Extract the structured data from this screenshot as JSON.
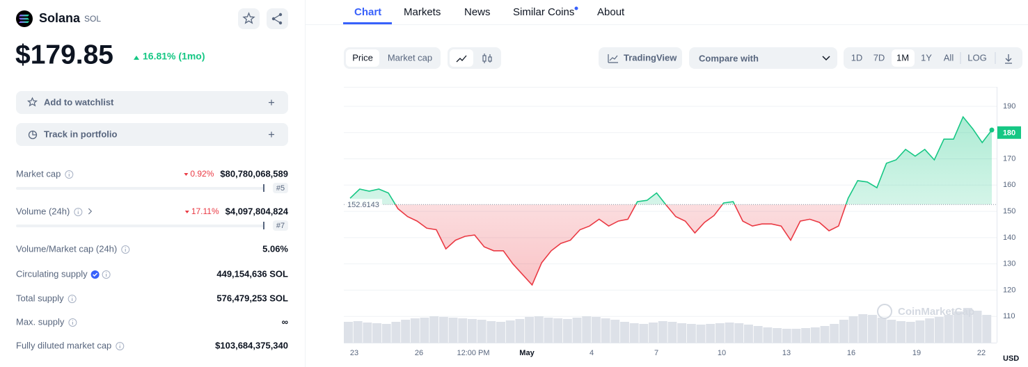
{
  "coin": {
    "name": "Solana",
    "symbol": "SOL",
    "price": "$179.85",
    "change": "16.81% (1mo)"
  },
  "actions": [
    "Add to watchlist",
    "Track in portfolio"
  ],
  "stats": [
    {
      "label": "Market cap",
      "change": "0.92%",
      "value": "$80,780,068,589",
      "rank": "#5"
    },
    {
      "label": "Volume (24h)",
      "change": "17.11%",
      "value": "$4,097,804,824",
      "rank": "#7"
    },
    {
      "label": "Volume/Market cap (24h)",
      "value": "5.06%"
    },
    {
      "label": "Circulating supply",
      "value": "449,154,636 SOL"
    },
    {
      "label": "Total supply",
      "value": "576,479,253 SOL"
    },
    {
      "label": "Max. supply",
      "value": "∞"
    },
    {
      "label": "Fully diluted market cap",
      "value": "$103,684,375,340"
    }
  ],
  "tabs": [
    "Chart",
    "Markets",
    "News",
    "Similar Coins",
    "About"
  ],
  "toolbar": {
    "modes": [
      "Price",
      "Market cap"
    ],
    "tradingview": "TradingView",
    "compare": "Compare with",
    "ranges": [
      "1D",
      "7D",
      "1M",
      "1Y",
      "All",
      "LOG"
    ]
  },
  "chart": {
    "type": "line",
    "ylim": [
      100,
      197.4
    ],
    "yticks": [
      110,
      120,
      130,
      140,
      150,
      160,
      170,
      180,
      190
    ],
    "x_labels": [
      "23",
      "26",
      "12:00 PM",
      "May",
      "4",
      "7",
      "10",
      "13",
      "16",
      "19",
      "22"
    ],
    "baseline": {
      "value": 152.6143,
      "label": "152.6143"
    },
    "last_price": 180,
    "currency": "USD",
    "watermark": "CoinMarketCap",
    "up_color": "#16c784",
    "down_color": "#ea3943",
    "values": [
      155,
      158.5,
      157.7,
      158.5,
      157,
      151,
      148,
      146.3,
      143.6,
      143,
      135.7,
      139,
      140.5,
      141,
      136.5,
      135,
      135,
      130,
      126,
      122,
      130.4,
      135,
      137.8,
      139,
      143,
      144.4,
      147,
      144.4,
      146.3,
      147,
      153.7,
      154.2,
      157,
      152.4,
      148,
      146.3,
      141.8,
      145.8,
      148.4,
      153.2,
      153.7,
      146.3,
      144.4,
      145.2,
      145.2,
      144.4,
      139,
      146.3,
      147,
      145.8,
      142.6,
      144.4,
      155,
      161.7,
      161.2,
      159,
      168.3,
      169.6,
      173.6,
      171,
      173.6,
      169.6,
      177.5,
      177.5,
      186,
      181.5,
      176.2,
      181
    ],
    "volume": [
      30,
      31,
      29,
      28,
      27,
      30,
      33,
      35,
      36,
      38,
      37,
      36,
      35,
      34,
      33,
      31,
      30,
      32,
      34,
      37,
      38,
      36,
      35,
      34,
      36,
      38,
      37,
      35,
      33,
      30,
      28,
      27,
      29,
      31,
      30,
      28,
      27,
      26,
      27,
      28,
      29,
      28,
      26,
      24,
      22,
      21,
      20,
      20,
      21,
      22,
      24,
      27,
      33,
      38,
      41,
      40,
      36,
      33,
      31,
      30,
      32,
      35,
      37,
      40,
      45,
      50,
      46,
      40
    ]
  }
}
